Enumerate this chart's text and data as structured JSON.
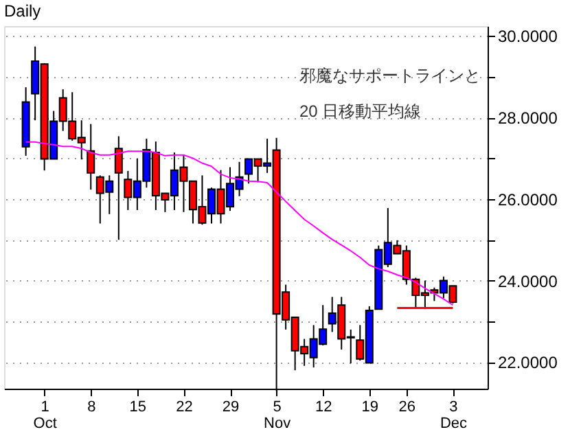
{
  "chart_data": {
    "type": "candlestick",
    "title": "Daily",
    "categories": [
      null,
      null,
      "1 Oct",
      null,
      null,
      null,
      null,
      "8",
      null,
      null,
      null,
      null,
      "15",
      null,
      null,
      null,
      null,
      "22",
      null,
      null,
      null,
      null,
      "29",
      null,
      null,
      null,
      null,
      "5 Nov",
      null,
      null,
      null,
      null,
      "12",
      null,
      null,
      null,
      null,
      "19",
      null,
      null,
      null,
      "26",
      null,
      null,
      null,
      null,
      "3 Dec"
    ],
    "ohlc": [
      [
        27.28,
        28.74,
        27.06,
        28.38
      ],
      [
        28.58,
        29.74,
        27.93,
        29.38
      ],
      [
        29.31,
        29.33,
        26.7,
        26.98
      ],
      [
        26.98,
        28.16,
        26.98,
        27.91
      ],
      [
        28.48,
        28.69,
        27.67,
        27.91
      ],
      [
        27.91,
        28.62,
        27.43,
        27.48
      ],
      [
        27.51,
        27.93,
        26.97,
        27.38
      ],
      [
        27.18,
        27.84,
        26.23,
        26.64
      ],
      [
        26.54,
        26.58,
        25.4,
        26.14
      ],
      [
        26.17,
        26.58,
        25.63,
        26.44
      ],
      [
        27.24,
        27.54,
        25.0,
        26.64
      ],
      [
        26.48,
        26.69,
        25.73,
        26.04
      ],
      [
        26.04,
        26.99,
        25.73,
        26.44
      ],
      [
        26.44,
        27.48,
        26.28,
        27.21
      ],
      [
        27.14,
        27.41,
        25.73,
        26.08
      ],
      [
        26.14,
        26.14,
        25.68,
        25.98
      ],
      [
        26.08,
        27.14,
        25.73,
        26.71
      ],
      [
        26.78,
        27.08,
        25.68,
        26.44
      ],
      [
        26.44,
        26.44,
        25.4,
        25.74
      ],
      [
        25.81,
        26.58,
        25.37,
        25.41
      ],
      [
        25.64,
        26.28,
        25.4,
        26.24
      ],
      [
        26.24,
        26.71,
        25.4,
        25.64
      ],
      [
        25.81,
        26.78,
        25.71,
        26.38
      ],
      [
        26.24,
        26.91,
        26.07,
        26.54
      ],
      [
        26.61,
        26.98,
        26.38,
        26.98
      ],
      [
        26.98,
        26.98,
        26.41,
        26.81
      ],
      [
        26.81,
        27.48,
        26.64,
        26.88
      ],
      [
        27.2,
        27.5,
        21.3,
        23.18
      ],
      [
        23.72,
        23.9,
        22.8,
        23.04
      ],
      [
        23.1,
        23.1,
        21.8,
        22.28
      ],
      [
        22.38,
        22.57,
        21.91,
        22.21
      ],
      [
        22.11,
        22.91,
        21.87,
        22.57
      ],
      [
        22.44,
        23.4,
        22.41,
        22.81
      ],
      [
        22.94,
        23.6,
        22.74,
        23.2
      ],
      [
        23.4,
        23.6,
        22.31,
        22.57
      ],
      [
        22.62,
        22.8,
        21.97,
        22.6
      ],
      [
        22.54,
        22.91,
        22.04,
        22.08
      ],
      [
        21.98,
        23.37,
        21.98,
        23.27
      ],
      [
        23.3,
        24.86,
        23.3,
        24.76
      ],
      [
        24.4,
        25.78,
        24.33,
        24.93
      ],
      [
        24.86,
        24.99,
        24.66,
        24.66
      ],
      [
        24.73,
        24.86,
        23.9,
        24.03
      ],
      [
        24.03,
        24.07,
        23.34,
        23.64
      ],
      [
        23.7,
        24.0,
        23.3,
        23.64
      ],
      [
        23.77,
        23.83,
        23.5,
        23.7
      ],
      [
        23.7,
        24.1,
        23.57,
        24.0
      ],
      [
        23.87,
        23.87,
        23.44,
        23.47
      ]
    ],
    "colors": [
      "#0000ff",
      "#0000ff",
      "#ff0000",
      "#0000ff",
      "#ff0000",
      "#ff0000",
      "#ff0000",
      "#ff0000",
      "#ff0000",
      "#0000ff",
      "#ff0000",
      "#ff0000",
      "#0000ff",
      "#0000ff",
      "#ff0000",
      "#ff0000",
      "#0000ff",
      "#ff0000",
      "#ff0000",
      "#ff0000",
      "#0000ff",
      "#ff0000",
      "#0000ff",
      "#0000ff",
      "#0000ff",
      "#ff0000",
      "#0000ff",
      "#ff0000",
      "#ff0000",
      "#ff0000",
      "#ff0000",
      "#0000ff",
      "#0000ff",
      "#0000ff",
      "#ff0000",
      "#ff0000",
      "#ff0000",
      "#0000ff",
      "#0000ff",
      "#0000ff",
      "#ff0000",
      "#ff0000",
      "#ff0000",
      "#ff0000",
      "#ff0000",
      "#0000ff",
      "#ff0000"
    ],
    "series": [
      {
        "type": "line",
        "color": "#ff00ff",
        "values": [
          27.4,
          27.4,
          27.36,
          27.33,
          27.29,
          27.29,
          27.24,
          27.14,
          27.08,
          27.08,
          27.12,
          27.17,
          27.17,
          27.17,
          27.14,
          27.06,
          27.08,
          27.08,
          27.0,
          26.88,
          26.8,
          26.61,
          26.52,
          26.49,
          26.44,
          26.43,
          26.4,
          26.17,
          25.94,
          25.72,
          25.5,
          25.34,
          25.17,
          25.01,
          24.87,
          24.73,
          24.57,
          24.38,
          24.29,
          24.23,
          24.14,
          24.07,
          23.96,
          23.81,
          23.68,
          23.55,
          23.4
        ]
      },
      {
        "type": "line",
        "color": "#ff0000",
        "values": [
          null,
          null,
          null,
          null,
          null,
          null,
          null,
          null,
          null,
          null,
          null,
          null,
          null,
          null,
          null,
          null,
          null,
          null,
          null,
          null,
          null,
          null,
          null,
          null,
          null,
          null,
          null,
          null,
          null,
          null,
          null,
          null,
          null,
          null,
          null,
          null,
          null,
          null,
          null,
          null,
          23.33,
          23.33,
          23.33,
          23.33,
          23.33,
          23.33,
          23.33
        ]
      }
    ],
    "ylim": [
      21.35,
      30.24
    ],
    "yticks": [
      {
        "value": 22,
        "label": "22.0000"
      },
      {
        "value": 23,
        "label": null
      },
      {
        "value": 24,
        "label": "24.0000"
      },
      {
        "value": 25,
        "label": null
      },
      {
        "value": 26,
        "label": "26.0000"
      },
      {
        "value": 27,
        "label": null
      },
      {
        "value": 28,
        "label": "28.0000"
      },
      {
        "value": 29,
        "label": null
      },
      {
        "value": 30,
        "label": "30.0000"
      }
    ],
    "grid": "y",
    "annotations": [
      "邪魔なサポートラインと",
      "20 日移動平均線"
    ]
  }
}
